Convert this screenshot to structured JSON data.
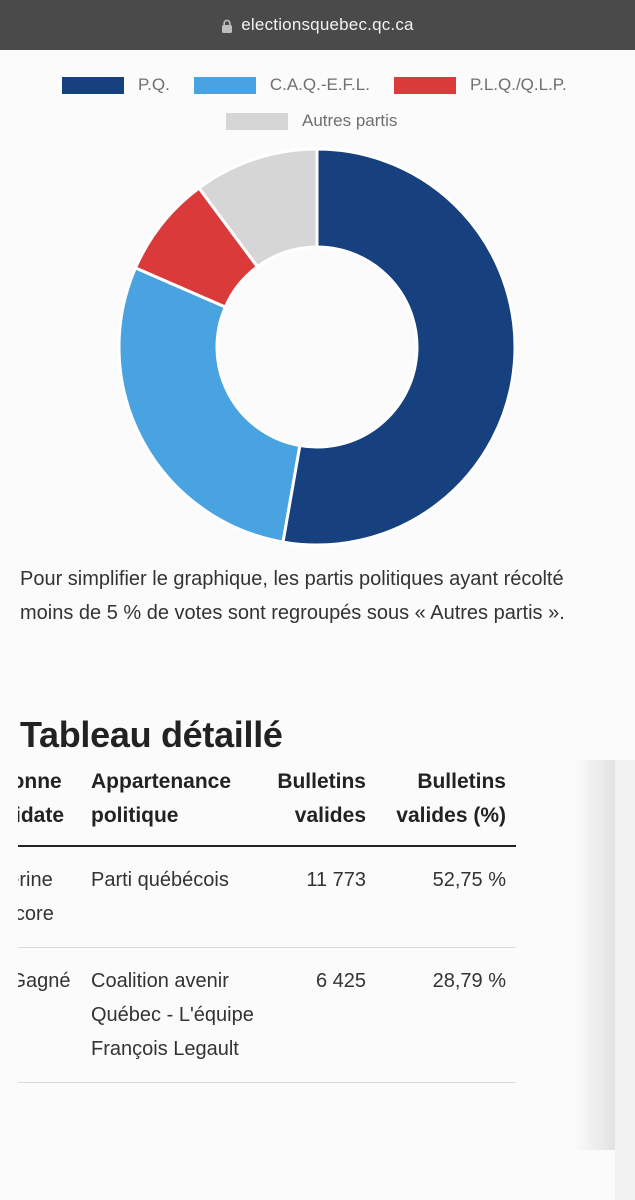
{
  "browser": {
    "url": "electionsquebec.qc.ca"
  },
  "chart_data": {
    "type": "pie",
    "donut": true,
    "legend_position": "top",
    "categories": [
      "P.Q.",
      "C.A.Q.-E.F.L.",
      "P.L.Q./Q.L.P.",
      "Autres partis"
    ],
    "values": [
      52.75,
      28.79,
      8.3,
      10.16
    ],
    "colors": [
      "#17407e",
      "#4aa3e1",
      "#db3a3a",
      "#d6d6d6"
    ]
  },
  "note": "Pour simplifier le graphique, les partis politiques ayant récolté moins de 5 % de votes sont regroupés sous « Autres partis ».",
  "section_title": "Tableau détaillé",
  "table": {
    "headers": {
      "candidate": "Personne candidate",
      "party": "Appartenance politique",
      "votes": "Bulletins valides",
      "pct": "Bulletins valides (%)"
    },
    "rows": [
      {
        "candidate": "Catherine Fentilcore",
        "party": "Parti québécois",
        "votes": "11 773",
        "pct": "52,75 %"
      },
      {
        "candidate": "Alex Gagné",
        "party": "Coalition avenir Québec - L'équipe François Legault",
        "votes": "6 425",
        "pct": "28,79 %"
      }
    ]
  }
}
